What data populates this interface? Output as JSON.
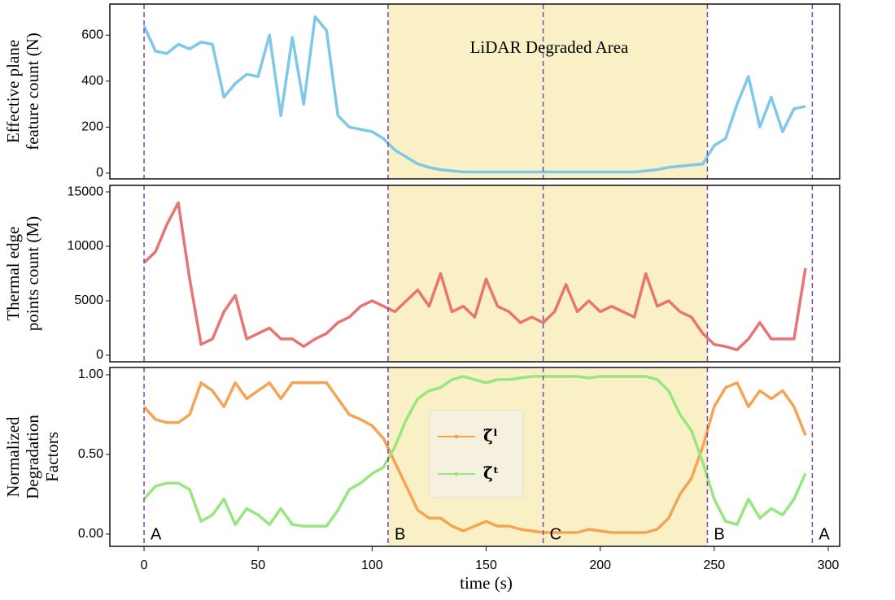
{
  "chart_data": [
    {
      "type": "line",
      "ylabel": [
        "Effective plane",
        "feature count (N)"
      ],
      "annotation": "LiDAR Degraded Area",
      "shaded_region": [
        107,
        247
      ],
      "xlim": [
        -15,
        305
      ],
      "ylim": [
        -25,
        735
      ],
      "yticks": [
        0,
        200,
        400,
        600
      ],
      "x": [
        0,
        5,
        10,
        15,
        20,
        25,
        30,
        35,
        40,
        45,
        50,
        55,
        60,
        65,
        70,
        75,
        80,
        85,
        90,
        95,
        100,
        105,
        110,
        115,
        120,
        125,
        130,
        135,
        140,
        145,
        150,
        155,
        160,
        165,
        170,
        175,
        180,
        185,
        190,
        195,
        200,
        205,
        210,
        215,
        220,
        225,
        230,
        235,
        240,
        245,
        250,
        255,
        260,
        265,
        270,
        275,
        280,
        285,
        290
      ],
      "series": [
        {
          "color": "#7ec8e8",
          "values": [
            640,
            530,
            520,
            560,
            540,
            570,
            560,
            330,
            390,
            430,
            420,
            600,
            250,
            590,
            300,
            680,
            620,
            250,
            200,
            190,
            180,
            150,
            100,
            70,
            40,
            25,
            15,
            10,
            5,
            5,
            5,
            5,
            5,
            5,
            5,
            5,
            5,
            5,
            5,
            5,
            5,
            5,
            5,
            5,
            10,
            15,
            25,
            30,
            35,
            40,
            120,
            150,
            300,
            420,
            200,
            330,
            180,
            280,
            290
          ]
        }
      ]
    },
    {
      "type": "line",
      "ylabel": [
        "Thermal edge",
        "points count (M)"
      ],
      "xlim": [
        -15,
        305
      ],
      "ylim": [
        -600,
        15600
      ],
      "yticks": [
        0,
        5000,
        10000,
        15000
      ],
      "x": [
        0,
        5,
        10,
        15,
        20,
        25,
        30,
        35,
        40,
        45,
        50,
        55,
        60,
        65,
        70,
        75,
        80,
        85,
        90,
        95,
        100,
        105,
        110,
        115,
        120,
        125,
        130,
        135,
        140,
        145,
        150,
        155,
        160,
        165,
        170,
        175,
        180,
        185,
        190,
        195,
        200,
        205,
        210,
        215,
        220,
        225,
        230,
        235,
        240,
        245,
        250,
        255,
        260,
        265,
        270,
        275,
        280,
        285,
        290
      ],
      "series": [
        {
          "color": "#e87474",
          "values": [
            8500,
            9500,
            12000,
            14000,
            7000,
            1000,
            1500,
            4000,
            5500,
            1500,
            2000,
            2500,
            1500,
            1500,
            800,
            1500,
            2000,
            3000,
            3500,
            4500,
            5000,
            4500,
            4000,
            5000,
            6000,
            4500,
            7500,
            4000,
            4500,
            3500,
            7000,
            4500,
            4000,
            3000,
            3500,
            3000,
            4000,
            6500,
            4000,
            5000,
            4000,
            4500,
            4000,
            3500,
            7500,
            4500,
            5000,
            4000,
            3500,
            2000,
            1000,
            800,
            500,
            1500,
            3000,
            1500,
            1500,
            1500,
            8000
          ]
        }
      ]
    },
    {
      "type": "line",
      "ylabel": [
        "Normalized",
        "Degradation",
        "Factors"
      ],
      "xlabel": "time (s)",
      "xlim": [
        -15,
        305
      ],
      "ylim": [
        -0.077,
        1.046
      ],
      "xticks": [
        0,
        50,
        100,
        150,
        200,
        250,
        300
      ],
      "yticks": [
        {
          "value": 0,
          "label": "0.00"
        },
        {
          "value": 0.5,
          "label": "0.50"
        },
        {
          "value": 1,
          "label": "1.00"
        }
      ],
      "markers": [
        {
          "x": 0,
          "label": "A"
        },
        {
          "x": 107,
          "label": "B"
        },
        {
          "x": 175,
          "label": "C"
        },
        {
          "x": 247,
          "label": "B"
        },
        {
          "x": 293,
          "label": "A"
        }
      ],
      "x": [
        0,
        5,
        10,
        15,
        20,
        25,
        30,
        35,
        40,
        45,
        50,
        55,
        60,
        65,
        70,
        75,
        80,
        85,
        90,
        95,
        100,
        105,
        110,
        115,
        120,
        125,
        130,
        135,
        140,
        145,
        150,
        155,
        160,
        165,
        170,
        175,
        180,
        185,
        190,
        195,
        200,
        205,
        210,
        215,
        220,
        225,
        230,
        235,
        240,
        245,
        250,
        255,
        260,
        265,
        270,
        275,
        280,
        285,
        290
      ],
      "series": [
        {
          "name": "ζ̃ˡ",
          "color": "#f5a455",
          "values": [
            0.8,
            0.72,
            0.7,
            0.7,
            0.75,
            0.95,
            0.9,
            0.8,
            0.95,
            0.85,
            0.9,
            0.95,
            0.85,
            0.95,
            0.95,
            0.95,
            0.95,
            0.85,
            0.75,
            0.72,
            0.68,
            0.6,
            0.45,
            0.3,
            0.15,
            0.1,
            0.1,
            0.05,
            0.02,
            0.05,
            0.08,
            0.05,
            0.05,
            0.03,
            0.02,
            0.01,
            0.01,
            0.01,
            0.01,
            0.03,
            0.02,
            0.01,
            0.01,
            0.01,
            0.01,
            0.03,
            0.1,
            0.25,
            0.35,
            0.55,
            0.8,
            0.92,
            0.95,
            0.8,
            0.9,
            0.85,
            0.9,
            0.8,
            0.62
          ]
        },
        {
          "name": "ζ̃ᵗ",
          "color": "#98e67e",
          "values": [
            0.22,
            0.3,
            0.32,
            0.32,
            0.28,
            0.08,
            0.12,
            0.22,
            0.06,
            0.16,
            0.12,
            0.06,
            0.16,
            0.06,
            0.05,
            0.05,
            0.05,
            0.15,
            0.28,
            0.32,
            0.38,
            0.42,
            0.55,
            0.72,
            0.85,
            0.9,
            0.92,
            0.97,
            0.99,
            0.97,
            0.95,
            0.97,
            0.97,
            0.98,
            0.99,
            0.99,
            0.99,
            0.99,
            0.99,
            0.98,
            0.99,
            0.99,
            0.99,
            0.99,
            0.99,
            0.97,
            0.9,
            0.75,
            0.65,
            0.45,
            0.22,
            0.08,
            0.06,
            0.22,
            0.1,
            0.16,
            0.12,
            0.22,
            0.38
          ]
        }
      ]
    }
  ]
}
